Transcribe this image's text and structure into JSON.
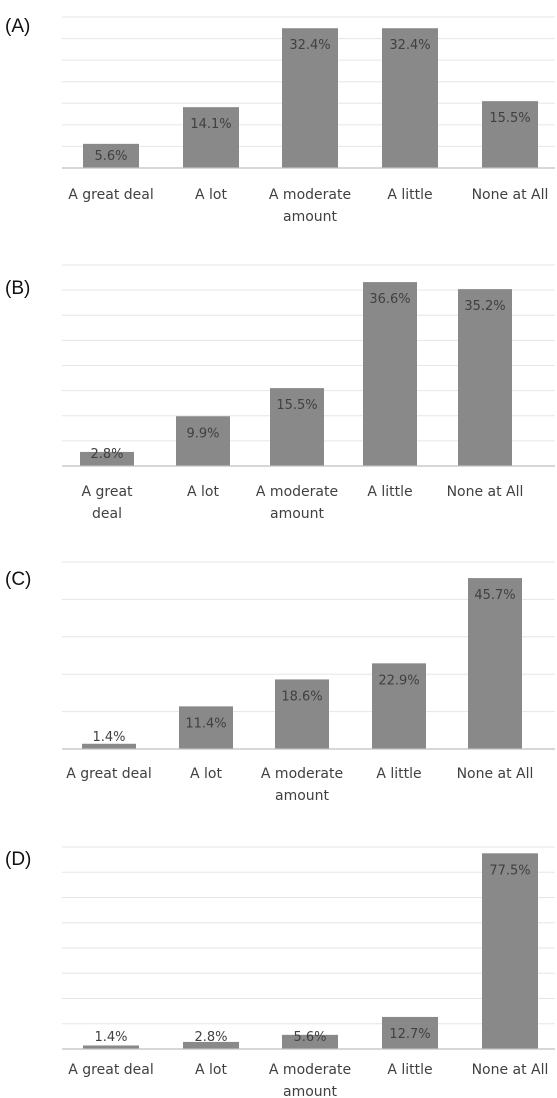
{
  "chart_data": [
    {
      "type": "bar",
      "panel_label": "(A)",
      "categories": [
        [
          "A great deal"
        ],
        [
          "A lot"
        ],
        [
          "A moderate",
          "amount"
        ],
        [
          "A little"
        ],
        [
          "None at All"
        ]
      ],
      "values": [
        5.6,
        14.1,
        32.4,
        32.4,
        15.5
      ],
      "value_labels": [
        "5.6%",
        "14.1%",
        "32.4%",
        "32.4%",
        "15.5%"
      ],
      "ylim": [
        0,
        35
      ],
      "grid": true,
      "bar_color": "#898989"
    },
    {
      "type": "bar",
      "panel_label": "(B)",
      "categories": [
        [
          "A great",
          "deal"
        ],
        [
          "A lot"
        ],
        [
          "A moderate",
          "amount"
        ],
        [
          "A little"
        ],
        [
          "None at All"
        ]
      ],
      "values": [
        2.8,
        9.9,
        15.5,
        36.6,
        35.2
      ],
      "value_labels": [
        "2.8%",
        "9.9%",
        "15.5%",
        "36.6%",
        "35.2%"
      ],
      "ylim": [
        0,
        40
      ],
      "grid": true,
      "bar_color": "#898989"
    },
    {
      "type": "bar",
      "panel_label": "(C)",
      "categories": [
        [
          "A great deal"
        ],
        [
          "A lot"
        ],
        [
          "A moderate",
          "amount"
        ],
        [
          "A little"
        ],
        [
          "None at All"
        ]
      ],
      "values": [
        1.4,
        11.4,
        18.6,
        22.9,
        45.7
      ],
      "value_labels": [
        "1.4%",
        "11.4%",
        "18.6%",
        "22.9%",
        "45.7%"
      ],
      "ylim": [
        0,
        50
      ],
      "grid": true,
      "bar_color": "#898989"
    },
    {
      "type": "bar",
      "panel_label": "(D)",
      "categories": [
        [
          "A great deal"
        ],
        [
          "A lot"
        ],
        [
          "A moderate",
          "amount"
        ],
        [
          "A little"
        ],
        [
          "None at All"
        ]
      ],
      "values": [
        1.4,
        2.8,
        5.6,
        12.7,
        77.5
      ],
      "value_labels": [
        "1.4%",
        "2.8%",
        "5.6%",
        "12.7%",
        "77.5%"
      ],
      "ylim": [
        0,
        80
      ],
      "grid": true,
      "bar_color": "#898989"
    }
  ]
}
